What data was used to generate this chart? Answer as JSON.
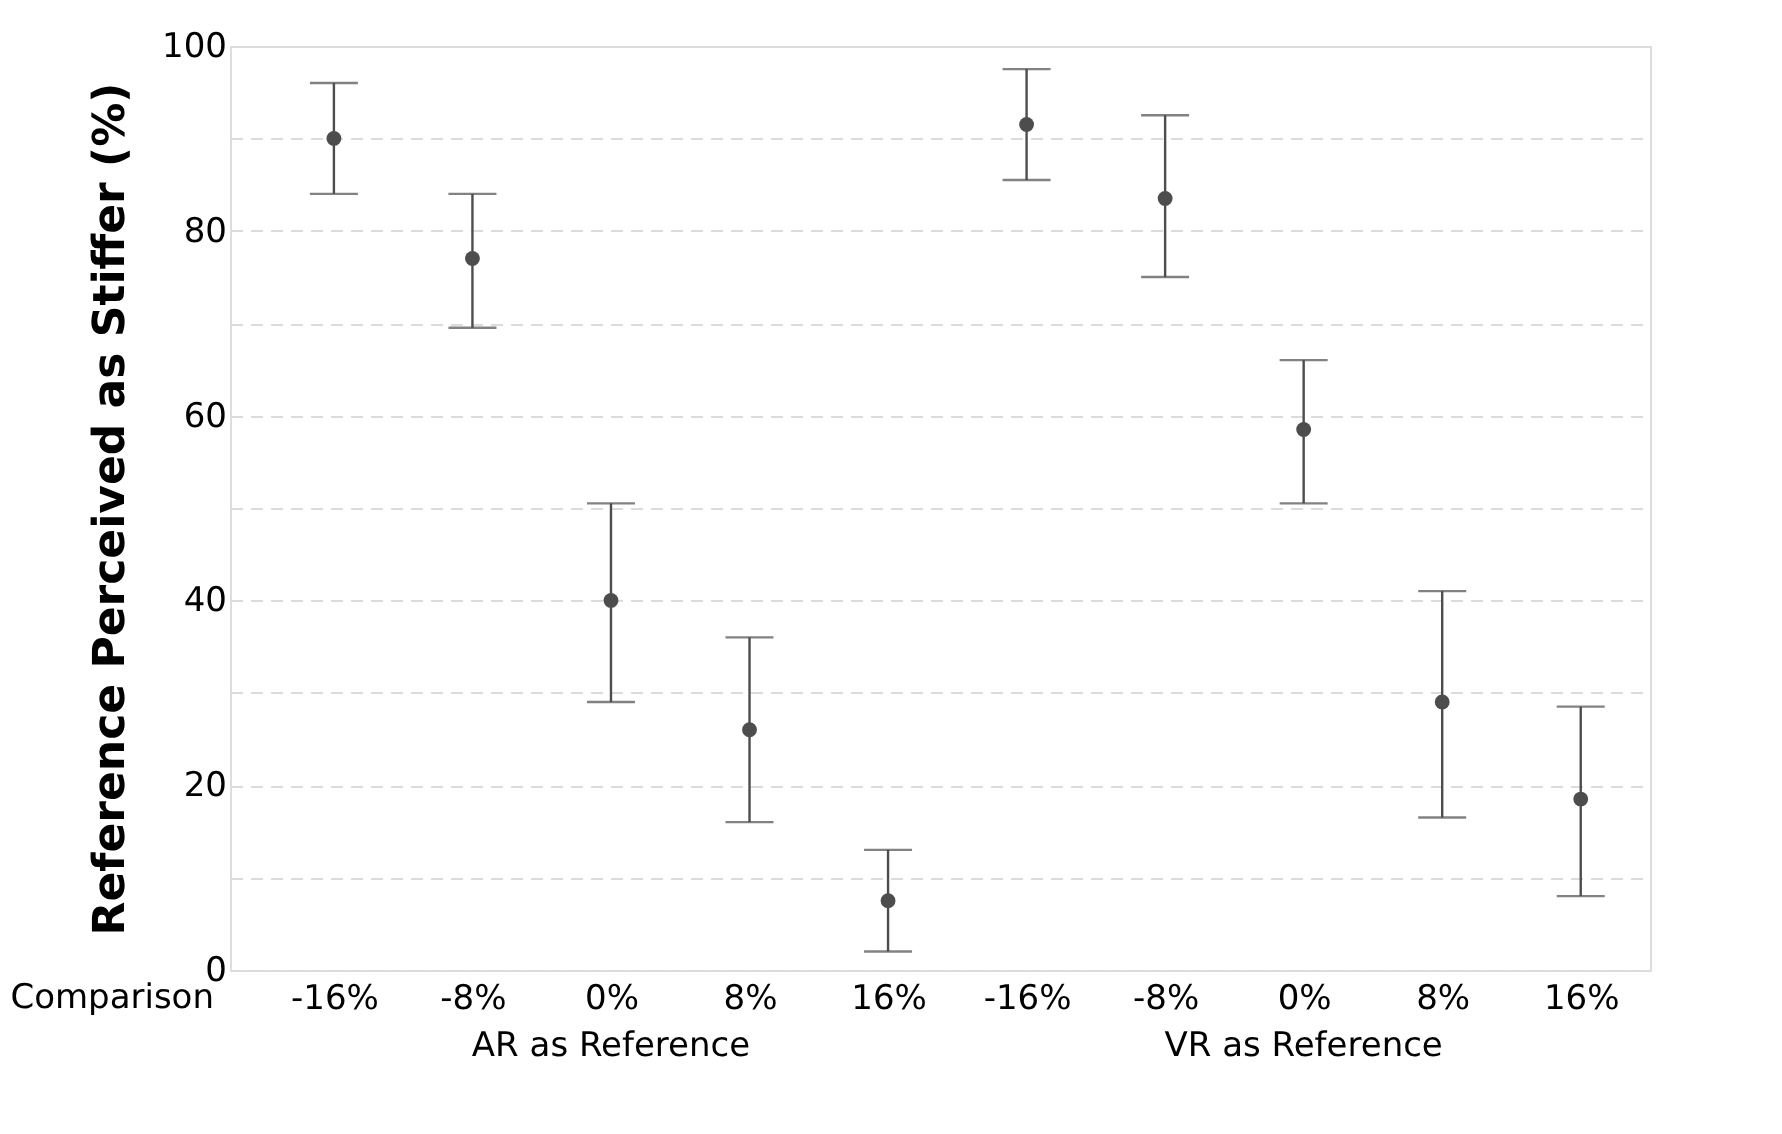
{
  "chart_data": {
    "type": "scatter",
    "ylabel": "Reference Perceived as Stiffer (%)",
    "xlabel": "Comparison",
    "categories": [
      "-16%",
      "-8%",
      "0%",
      "8%",
      "16%",
      "-16%",
      "-8%",
      "0%",
      "8%",
      "16%"
    ],
    "values": [
      90,
      77,
      40,
      26,
      7.5,
      91.5,
      83.5,
      58.5,
      29,
      18.5
    ],
    "errors": [
      [
        84,
        96
      ],
      [
        69.5,
        84
      ],
      [
        29,
        50.5
      ],
      [
        16,
        36
      ],
      [
        2,
        13
      ],
      [
        85.5,
        97.5
      ],
      [
        75,
        92.5
      ],
      [
        50.5,
        66
      ],
      [
        16.5,
        41
      ],
      [
        8,
        28.5
      ]
    ],
    "color": "#4d4d4d",
    "marker": "circle",
    "ylim": [
      0,
      100
    ],
    "yticks": [
      0,
      {
        "value": 10,
        "label": null
      },
      20,
      {
        "value": 30,
        "label": null
      },
      40,
      {
        "value": 50,
        "label": null
      },
      60,
      {
        "value": 70,
        "label": null
      },
      80,
      {
        "value": 90,
        "label": null
      },
      100
    ],
    "grid": "y",
    "annotations": [
      "AR as Reference",
      "VR as Reference"
    ]
  }
}
